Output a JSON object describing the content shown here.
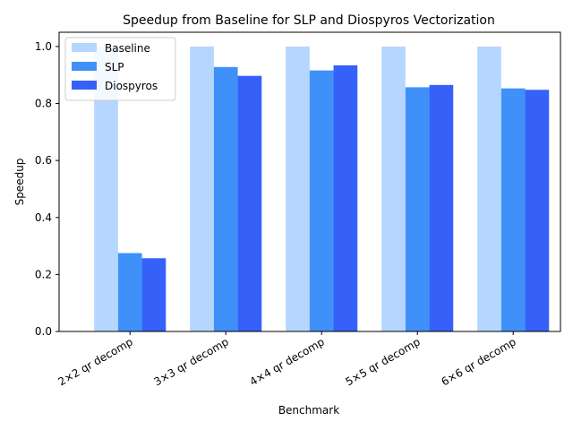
{
  "chart_data": {
    "type": "bar",
    "title": "Speedup from Baseline for SLP and Diospyros Vectorization",
    "xlabel": "Benchmark",
    "ylabel": "Speedup",
    "categories": [
      "2×2 qr decomp",
      "3×3 qr decomp",
      "4×4 qr decomp",
      "5×5 qr decomp",
      "6×6 qr decomp"
    ],
    "series": [
      {
        "name": "Baseline",
        "color": "#b5d7ff",
        "values": [
          1.0,
          1.0,
          1.0,
          1.0,
          1.0
        ]
      },
      {
        "name": "SLP",
        "color": "#3f91f9",
        "values": [
          0.275,
          0.928,
          0.916,
          0.857,
          0.853
        ]
      },
      {
        "name": "Diospyros",
        "color": "#3561f9",
        "values": [
          0.257,
          0.897,
          0.934,
          0.865,
          0.848
        ]
      }
    ],
    "ylim": [
      0,
      1.05
    ],
    "yticks": [
      0.0,
      0.2,
      0.4,
      0.6,
      0.8,
      1.0
    ],
    "ytick_labels": [
      "0.0",
      "0.2",
      "0.4",
      "0.6",
      "0.8",
      "1.0"
    ],
    "grid": false,
    "legend": "upper-left"
  }
}
